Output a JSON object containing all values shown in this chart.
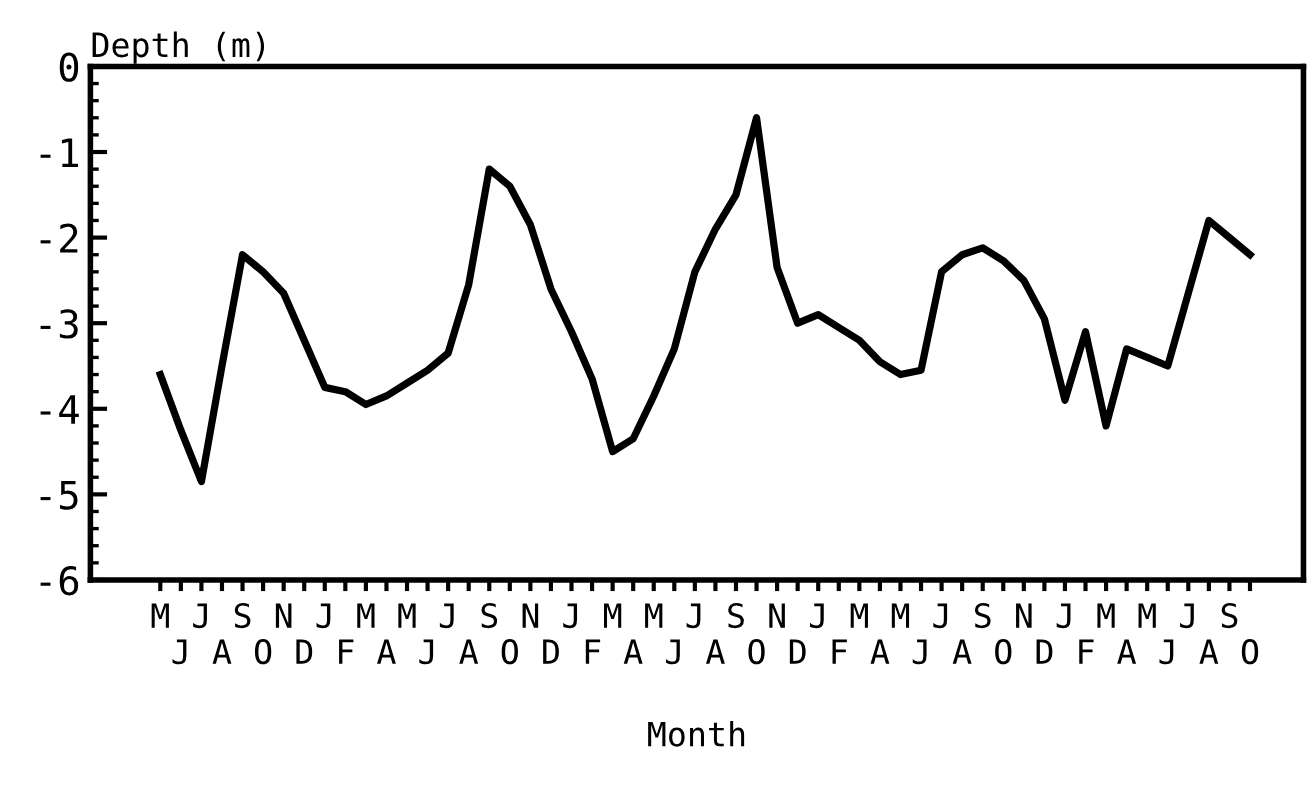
{
  "chart_data": {
    "type": "line",
    "xlabel": "Month",
    "ylabel": "Depth (m)",
    "categories": [
      "M",
      "J",
      "J",
      "A",
      "S",
      "O",
      "N",
      "D",
      "J",
      "F",
      "M",
      "A",
      "M",
      "J",
      "J",
      "A",
      "S",
      "O",
      "N",
      "D",
      "J",
      "F",
      "M",
      "A",
      "M",
      "J",
      "J",
      "A",
      "S",
      "O",
      "N",
      "D",
      "J",
      "F",
      "M",
      "A",
      "M",
      "J",
      "J",
      "A",
      "S",
      "O",
      "N",
      "D",
      "J",
      "F",
      "M",
      "A",
      "M",
      "J",
      "J",
      "A",
      "S",
      "O"
    ],
    "series": [
      {
        "color": "#000000",
        "values": [
          -3.6,
          -4.25,
          -4.85,
          -3.5,
          -2.2,
          -2.4,
          -2.65,
          -3.2,
          -3.75,
          -3.8,
          -3.95,
          -3.85,
          -3.7,
          -3.55,
          -3.35,
          -2.55,
          -1.2,
          -1.4,
          -1.85,
          -2.6,
          -3.1,
          -3.65,
          -4.5,
          -4.35,
          -3.85,
          -3.3,
          -2.4,
          -1.9,
          -1.5,
          -0.6,
          -2.35,
          -3.0,
          -2.9,
          -3.05,
          -3.2,
          -3.45,
          -3.6,
          -3.55,
          -2.4,
          -2.2,
          -2.12,
          -2.27,
          -2.5,
          -2.95,
          -3.9,
          -3.1,
          -4.2,
          -3.3,
          -3.4,
          -3.5,
          -2.65,
          -1.8,
          -2.0,
          -2.2
        ]
      }
    ],
    "ylim": [
      -6,
      0
    ],
    "yticks": [
      0,
      -1,
      -2,
      -3,
      -4,
      -5,
      -6
    ],
    "grid": false,
    "legend": false,
    "marker": "none",
    "line_style": "solid"
  }
}
